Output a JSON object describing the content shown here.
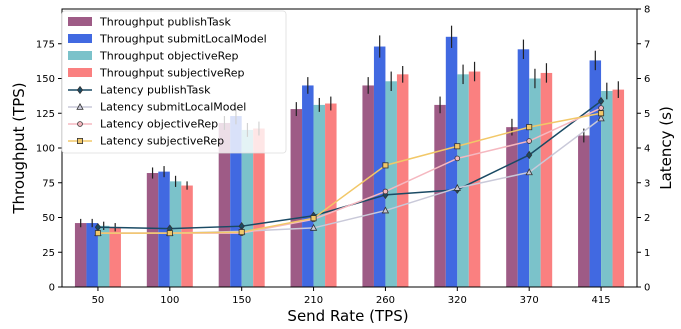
{
  "chart_data": {
    "type": "bar",
    "title": "",
    "xlabel": "Send Rate (TPS)",
    "ylabel": "Throughput (TPS)",
    "y2label": "Latency (s)",
    "categories": [
      "50",
      "100",
      "150",
      "210",
      "260",
      "320",
      "370",
      "415"
    ],
    "ylim": [
      0,
      200
    ],
    "y2lim": [
      0,
      8
    ],
    "yticks": [
      0,
      25,
      50,
      75,
      100,
      125,
      150,
      175
    ],
    "y2ticks": [
      0,
      1,
      2,
      3,
      4,
      5,
      6,
      7,
      8
    ],
    "grid": false,
    "legend_position": "upper-left",
    "bar_series": [
      {
        "name": "Throughput publishTask",
        "color": "#9e5b86",
        "values": [
          46,
          82,
          118,
          128,
          145,
          131,
          115,
          109
        ],
        "errors": [
          3,
          4,
          5,
          5,
          6,
          6,
          6,
          5
        ]
      },
      {
        "name": "Throughput submitLocalModel",
        "color": "#4169e1",
        "values": [
          46,
          83,
          123,
          145,
          173,
          180,
          171,
          163
        ],
        "errors": [
          3,
          4,
          6,
          6,
          8,
          8,
          7,
          7
        ]
      },
      {
        "name": "Throughput objectiveRep",
        "color": "#7bc2ca",
        "values": [
          44,
          76,
          113,
          131,
          148,
          153,
          150,
          141
        ],
        "errors": [
          3,
          4,
          5,
          5,
          7,
          7,
          7,
          6
        ]
      },
      {
        "name": "Throughput subjectiveRep",
        "color": "#fa8080",
        "values": [
          43,
          73,
          114,
          132,
          153,
          155,
          154,
          142
        ],
        "errors": [
          3,
          3,
          5,
          5,
          6,
          7,
          7,
          6
        ]
      }
    ],
    "line_series": [
      {
        "name": "Latency publishTask",
        "color": "#1a4a64",
        "marker": "diamond",
        "values": [
          1.72,
          1.68,
          1.75,
          2.05,
          2.65,
          2.8,
          3.8,
          5.35
        ]
      },
      {
        "name": "Latency submitLocalModel",
        "color": "#c9c9d9",
        "marker": "triangle",
        "values": [
          1.55,
          1.55,
          1.6,
          1.7,
          2.2,
          2.85,
          3.3,
          4.85
        ]
      },
      {
        "name": "Latency objectiveRep",
        "color": "#f5b8c0",
        "marker": "circle",
        "values": [
          1.55,
          1.55,
          1.55,
          1.95,
          2.75,
          3.7,
          4.2,
          5.15
        ]
      },
      {
        "name": "Latency subjectiveRep",
        "color": "#f2c868",
        "marker": "square",
        "values": [
          1.55,
          1.55,
          1.58,
          1.98,
          3.5,
          4.05,
          4.6,
          5.0
        ]
      }
    ]
  }
}
